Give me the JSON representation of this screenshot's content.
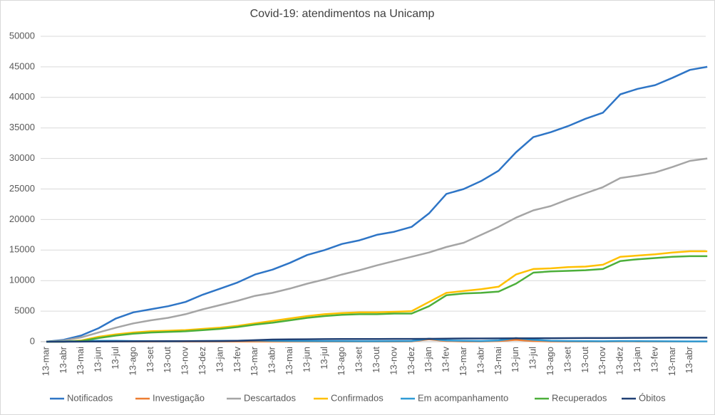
{
  "chart_data": {
    "type": "line",
    "title": "Covid-19: atendimentos  na Unicamp",
    "categories": [
      "13-mar",
      "13-abr",
      "13-mai",
      "13-jun",
      "13-jul",
      "13-ago",
      "13-set",
      "13-out",
      "13-nov",
      "13-dez",
      "13-jan",
      "13-fev",
      "13-mar",
      "13-abr",
      "13-mai",
      "13-jun",
      "13-jul",
      "13-ago",
      "13-set",
      "13-out",
      "13-nov",
      "13-dez",
      "13-jan",
      "13-fev",
      "13-mar",
      "13-abr",
      "13-mai",
      "13-jun",
      "13-jul",
      "13-ago",
      "13-set",
      "13-out",
      "13-nov",
      "13-dez",
      "13-jan",
      "13-fev",
      "13-mar",
      "13-abr",
      null
    ],
    "series": [
      {
        "name": "Notificados",
        "color": "#2e75c6",
        "values": [
          0,
          300,
          1000,
          2200,
          3800,
          4800,
          5300,
          5800,
          6500,
          7700,
          8700,
          9700,
          11000,
          11800,
          12900,
          14200,
          15000,
          16000,
          16600,
          17500,
          18000,
          18800,
          21000,
          24200,
          25000,
          26300,
          28000,
          31000,
          33500,
          34300,
          35300,
          36500,
          37500,
          40500,
          41400,
          42000,
          43200,
          44500,
          45000
        ]
      },
      {
        "name": "Investigação",
        "color": "#ed7d31",
        "values": [
          0,
          20,
          30,
          40,
          30,
          20,
          20,
          20,
          20,
          20,
          20,
          30,
          30,
          30,
          20,
          20,
          20,
          20,
          20,
          20,
          30,
          50,
          400,
          100,
          50,
          50,
          100,
          300,
          100,
          50,
          30,
          30,
          30,
          50,
          30,
          30,
          30,
          30,
          30
        ]
      },
      {
        "name": "Descartados",
        "color": "#a5a5a5",
        "values": [
          0,
          200,
          700,
          1500,
          2300,
          3000,
          3500,
          3900,
          4500,
          5300,
          6000,
          6700,
          7500,
          8000,
          8700,
          9500,
          10200,
          11000,
          11700,
          12500,
          13200,
          13900,
          14600,
          15500,
          16200,
          17500,
          18800,
          20300,
          21500,
          22200,
          23300,
          24300,
          25300,
          26800,
          27200,
          27700,
          28600,
          29600,
          30000
        ]
      },
      {
        "name": "Confirmados",
        "color": "#ffc000",
        "values": [
          0,
          0,
          200,
          800,
          1200,
          1500,
          1700,
          1800,
          1900,
          2100,
          2300,
          2600,
          3000,
          3400,
          3800,
          4200,
          4500,
          4700,
          4800,
          4800,
          4900,
          5000,
          6500,
          8000,
          8300,
          8600,
          9000,
          11000,
          11900,
          12000,
          12200,
          12300,
          12600,
          13900,
          14100,
          14300,
          14600,
          14800,
          14800
        ]
      },
      {
        "name": "Em acompanhamento",
        "color": "#2e9bd6",
        "values": [
          0,
          50,
          100,
          150,
          150,
          100,
          80,
          60,
          80,
          100,
          120,
          150,
          200,
          150,
          120,
          100,
          90,
          80,
          70,
          70,
          80,
          100,
          500,
          200,
          150,
          100,
          200,
          600,
          300,
          150,
          100,
          80,
          70,
          100,
          80,
          70,
          60,
          50,
          50
        ]
      },
      {
        "name": "Recuperados",
        "color": "#4caf3a",
        "values": [
          0,
          0,
          100,
          600,
          1000,
          1300,
          1500,
          1600,
          1700,
          1900,
          2100,
          2400,
          2800,
          3100,
          3500,
          3900,
          4200,
          4400,
          4500,
          4500,
          4600,
          4600,
          5800,
          7600,
          7900,
          8000,
          8200,
          9500,
          11300,
          11500,
          11600,
          11700,
          11900,
          13200,
          13500,
          13700,
          13900,
          14000,
          14000
        ]
      },
      {
        "name": "Óbitos",
        "color": "#1f3f73",
        "values": [
          0,
          0,
          10,
          30,
          50,
          60,
          70,
          80,
          90,
          100,
          120,
          150,
          250,
          350,
          380,
          400,
          420,
          430,
          440,
          440,
          450,
          450,
          470,
          500,
          520,
          530,
          540,
          550,
          560,
          570,
          580,
          590,
          600,
          620,
          630,
          640,
          650,
          650,
          650
        ]
      }
    ],
    "ylim": [
      0,
      50000
    ],
    "yticks": [
      0,
      5000,
      10000,
      15000,
      20000,
      25000,
      30000,
      35000,
      40000,
      45000,
      50000
    ],
    "grid": true,
    "legend": "bottom"
  }
}
